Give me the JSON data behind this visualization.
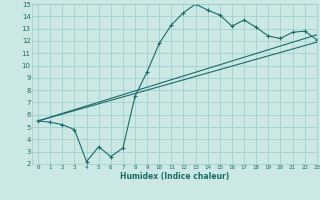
{
  "xlabel": "Humidex (Indice chaleur)",
  "xlim": [
    -0.5,
    23
  ],
  "ylim": [
    2,
    15
  ],
  "xticks": [
    0,
    1,
    2,
    3,
    4,
    5,
    6,
    7,
    8,
    9,
    10,
    11,
    12,
    13,
    14,
    15,
    16,
    17,
    18,
    19,
    20,
    21,
    22,
    23
  ],
  "yticks": [
    2,
    3,
    4,
    5,
    6,
    7,
    8,
    9,
    10,
    11,
    12,
    13,
    14,
    15
  ],
  "bg_color": "#cce8e4",
  "grid_color": "#99cccc",
  "line_color": "#1a6b6b",
  "line1_x": [
    0,
    1,
    2,
    3,
    4,
    5,
    6,
    7,
    8,
    9,
    10,
    11,
    12,
    13,
    14,
    15,
    16,
    17,
    18,
    19,
    20,
    21,
    22,
    23
  ],
  "line1_y": [
    5.5,
    5.4,
    5.2,
    4.8,
    2.2,
    3.4,
    2.6,
    3.3,
    7.5,
    9.5,
    11.8,
    13.3,
    14.3,
    15.0,
    14.5,
    14.1,
    13.2,
    13.7,
    13.1,
    12.4,
    12.2,
    12.7,
    12.8,
    12.1
  ],
  "line2_x": [
    0,
    23
  ],
  "line2_y": [
    5.5,
    12.5
  ],
  "line3_x": [
    0,
    23
  ],
  "line3_y": [
    5.5,
    11.9
  ]
}
